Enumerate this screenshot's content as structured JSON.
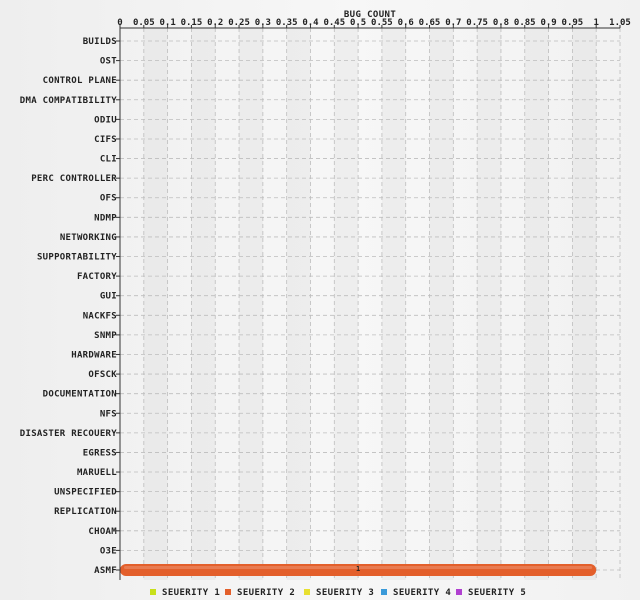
{
  "chart_data": {
    "type": "bar",
    "orientation": "horizontal",
    "stacked": true,
    "xlabel": "BUG COUNT",
    "xlim": [
      0,
      1.05
    ],
    "xticks": [
      "0",
      "0.05",
      "0.1",
      "0.15",
      "0.2",
      "0.25",
      "0.3",
      "0.35",
      "0.4",
      "0.45",
      "0.5",
      "0.55",
      "0.6",
      "0.65",
      "0.7",
      "0.75",
      "0.8",
      "0.85",
      "0.9",
      "0.95",
      "1",
      "1.05"
    ],
    "grid": true,
    "legend_position": "bottom",
    "categories": [
      "BUILDS",
      "OST",
      "CONTROL PLANE",
      "DMA COMPATIBILITY",
      "ODIU",
      "CIFS",
      "CLI",
      "PERC CONTROLLER",
      "OFS",
      "NDMP",
      "NETWORKING",
      "SUPPORTABILITY",
      "FACTORY",
      "GUI",
      "NACKFS",
      "SNMP",
      "HARDWARE",
      "OFSCK",
      "DOCUMENTATION",
      "NFS",
      "DISASTER RECOUERY",
      "EGRESS",
      "MARUELL",
      "UNSPECIFIED",
      "REPLICATION",
      "CHOAM",
      "O3E",
      "ASMF"
    ],
    "series": [
      {
        "name": "SEUERITY 1",
        "color": "#c8e01a",
        "values": [
          0,
          0,
          0,
          0,
          0,
          0,
          0,
          0,
          0,
          0,
          0,
          0,
          0,
          0,
          0,
          0,
          0,
          0,
          0,
          0,
          0,
          0,
          0,
          0,
          0,
          0,
          0,
          0
        ]
      },
      {
        "name": "SEUERITY 2",
        "color": "#e35f2b",
        "values": [
          0,
          0,
          0,
          0,
          0,
          0,
          0,
          0,
          0,
          0,
          0,
          0,
          0,
          0,
          0,
          0,
          0,
          0,
          0,
          0,
          0,
          0,
          0,
          0,
          0,
          0,
          0,
          1
        ]
      },
      {
        "name": "SEUERITY 3",
        "color": "#e8e030",
        "values": [
          0,
          0,
          0,
          0,
          0,
          0,
          0,
          0,
          0,
          0,
          0,
          0,
          0,
          0,
          0,
          0,
          0,
          0,
          0,
          0,
          0,
          0,
          0,
          0,
          0,
          0,
          0,
          0
        ]
      },
      {
        "name": "SEUERITY 4",
        "color": "#3a9ad9",
        "values": [
          0,
          0,
          0,
          0,
          0,
          0,
          0,
          0,
          0,
          0,
          0,
          0,
          0,
          0,
          0,
          0,
          0,
          0,
          0,
          0,
          0,
          0,
          0,
          0,
          0,
          0,
          0,
          0
        ]
      },
      {
        "name": "SEUERITY 5",
        "color": "#b040d0",
        "values": [
          0,
          0,
          0,
          0,
          0,
          0,
          0,
          0,
          0,
          0,
          0,
          0,
          0,
          0,
          0,
          0,
          0,
          0,
          0,
          0,
          0,
          0,
          0,
          0,
          0,
          0,
          0,
          0
        ]
      }
    ],
    "annotations": [
      {
        "category": "ASMF",
        "x": 0.5,
        "text": "1"
      }
    ]
  }
}
